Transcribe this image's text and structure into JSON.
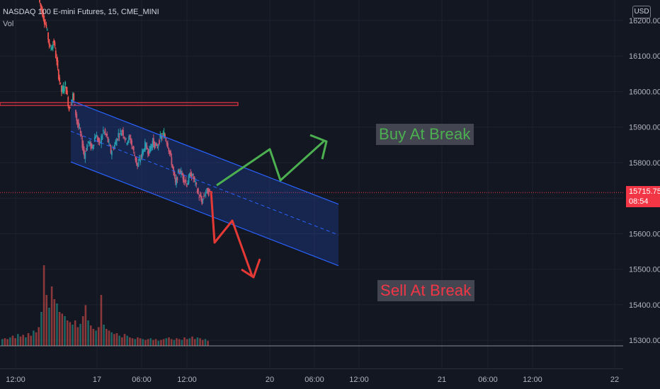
{
  "header": {
    "symbol": "NASDAQ 100 E-mini Futures, 15, CME_MINI",
    "volume_label": "Vol"
  },
  "price_scale": {
    "currency": "USD",
    "last_price": "15715.75",
    "countdown": "08:54"
  },
  "annotations": {
    "buy": "Buy At Break",
    "sell": "Sell At Break"
  },
  "colors": {
    "background": "#131722",
    "up": "#26a69a",
    "down": "#ef5350",
    "channel_line": "#2962ff",
    "resistance": "#f23645",
    "buy_arrow": "#4caf50",
    "sell_arrow": "#e53935"
  },
  "chart_data": {
    "type": "candlestick",
    "instrument": "NASDAQ 100 E-mini Futures",
    "interval": "15",
    "exchange": "CME_MINI",
    "y_ticks": [
      "16200.00",
      "16100.00",
      "16000.00",
      "15900.00",
      "15800.00",
      "15700.00",
      "15600.00",
      "15500.00",
      "15400.00",
      "15300.00"
    ],
    "y_tick_values": [
      16200,
      16100,
      16000,
      15900,
      15800,
      15700,
      15600,
      15500,
      15400,
      15300
    ],
    "x_ticks": [
      "12:00",
      "17",
      "06:00",
      "12:00",
      "20",
      "06:00",
      "12:00",
      "21",
      "06:00",
      "12:00",
      "22"
    ],
    "last_price": 15715.75,
    "resistance_level": 15965,
    "price_path": [
      [
        16260,
        16220
      ],
      [
        16220,
        16180
      ],
      [
        16180,
        16120
      ],
      [
        16120,
        16140
      ],
      [
        16140,
        16060
      ],
      [
        16060,
        16000
      ],
      [
        16000,
        16020
      ],
      [
        16020,
        15950
      ],
      [
        15950,
        15990
      ],
      [
        15990,
        15920
      ],
      [
        15920,
        15880
      ],
      [
        15880,
        15820
      ],
      [
        15820,
        15860
      ],
      [
        15860,
        15840
      ],
      [
        15840,
        15880
      ],
      [
        15880,
        15850
      ],
      [
        15850,
        15890
      ],
      [
        15890,
        15870
      ],
      [
        15870,
        15830
      ],
      [
        15830,
        15850
      ],
      [
        15850,
        15880
      ],
      [
        15880,
        15890
      ],
      [
        15890,
        15860
      ],
      [
        15860,
        15870
      ],
      [
        15870,
        15830
      ],
      [
        15830,
        15790
      ],
      [
        15790,
        15820
      ],
      [
        15820,
        15850
      ],
      [
        15850,
        15830
      ],
      [
        15830,
        15860
      ],
      [
        15860,
        15840
      ],
      [
        15840,
        15870
      ],
      [
        15870,
        15880
      ],
      [
        15880,
        15850
      ],
      [
        15850,
        15800
      ],
      [
        15800,
        15740
      ],
      [
        15740,
        15780
      ],
      [
        15780,
        15760
      ],
      [
        15760,
        15740
      ],
      [
        15740,
        15770
      ],
      [
        15770,
        15750
      ],
      [
        15750,
        15710
      ],
      [
        15710,
        15690
      ],
      [
        15690,
        15720
      ],
      [
        15720,
        15715.75
      ]
    ],
    "volume_levels": [
      8,
      9,
      8,
      10,
      12,
      9,
      14,
      11,
      13,
      10,
      15,
      12,
      18,
      16,
      22,
      40,
      95,
      60,
      45,
      70,
      55,
      50,
      40,
      38,
      35,
      30,
      28,
      25,
      30,
      22,
      26,
      35,
      48,
      30,
      24,
      20,
      18,
      22,
      60,
      25,
      20,
      18,
      16,
      14,
      15,
      12,
      10,
      14,
      12,
      10,
      9,
      8,
      10,
      9,
      8,
      7,
      8,
      9,
      7,
      8,
      6,
      7,
      8,
      9,
      10,
      8,
      7,
      9,
      8,
      7,
      10,
      8,
      9,
      11,
      8,
      10,
      9,
      7,
      8,
      6
    ],
    "channel": {
      "upper": [
        [
          "16 13:30",
          15975
        ],
        [
          "20 12:00",
          15683
        ]
      ],
      "lower": [
        [
          "16 13:30",
          15802
        ],
        [
          "20 12:00",
          15510
        ]
      ]
    },
    "grid": true
  }
}
